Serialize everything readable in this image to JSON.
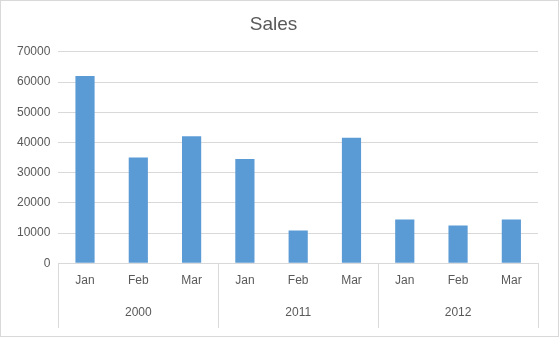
{
  "chart_data": {
    "type": "bar",
    "title": "Sales",
    "categories": [
      "Jan",
      "Feb",
      "Mar",
      "Jan",
      "Feb",
      "Mar",
      "Jan",
      "Feb",
      "Mar"
    ],
    "category_groups": [
      "2000",
      "2000",
      "2000",
      "2011",
      "2011",
      "2011",
      "2012",
      "2012",
      "2012"
    ],
    "values": [
      62000,
      35000,
      42000,
      34500,
      10800,
      41500,
      14500,
      12500,
      14500
    ],
    "color": "#5b9bd5",
    "ylim": [
      0,
      70000
    ],
    "yticks": [
      0,
      10000,
      20000,
      30000,
      40000,
      50000,
      60000,
      70000
    ],
    "grid": true
  }
}
